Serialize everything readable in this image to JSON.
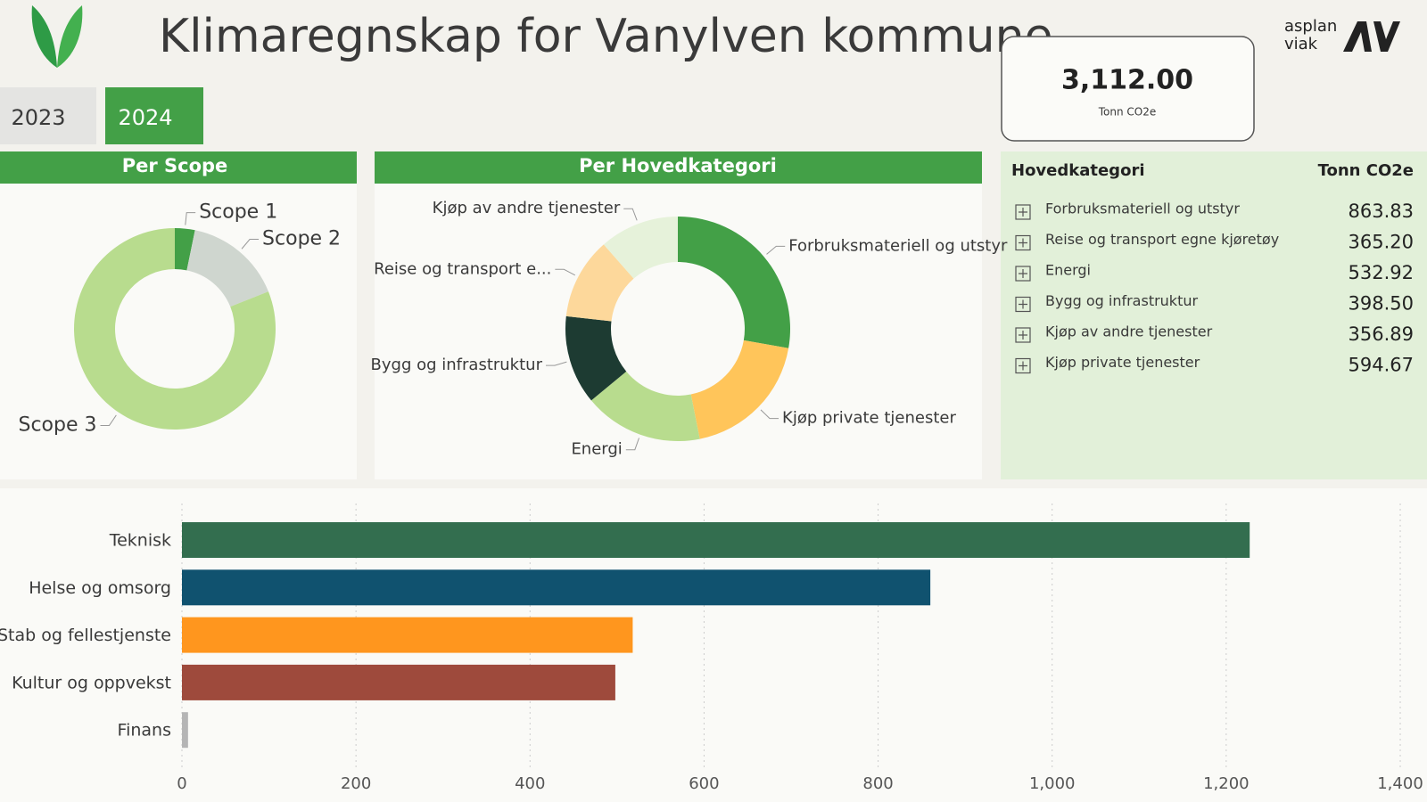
{
  "header": {
    "title": "Klimaregnskap for Vanylven kommune",
    "logo_text": [
      "asplan",
      "viak"
    ]
  },
  "year_buttons": {
    "items": [
      "2023",
      "2024"
    ],
    "selected": 1
  },
  "kpi_card": {
    "value": "3,112.00",
    "unit": "Tonn CO2e"
  },
  "table": {
    "columns": [
      "Hovedkategori",
      "Tonn CO2e"
    ],
    "rows": [
      [
        "Forbruksmateriell og utstyr",
        "863.83"
      ],
      [
        "Reise og transport egne kjøretøy",
        "365.20"
      ],
      [
        "Energi",
        "532.92"
      ],
      [
        "Bygg og infrastruktur",
        "398.50"
      ],
      [
        "Kjøp av andre tjenester",
        "356.89"
      ],
      [
        "Kjøp private tjenester",
        "594.67"
      ]
    ]
  },
  "chart_data": [
    {
      "type": "donut",
      "title": "Per Scope",
      "categories": [
        "Scope 1",
        "Scope 2",
        "Scope 3"
      ],
      "values": [
        100,
        490,
        2522
      ],
      "colors": [
        "#43a047",
        "#cfd6cf",
        "#b8dc8e"
      ]
    },
    {
      "type": "donut",
      "title": "Per Hovedkategori",
      "categories": [
        "Forbruksmateriell og utstyr",
        "Kjøp private tjenester",
        "Energi",
        "Bygg og infrastruktur",
        "Reise og transport e...",
        "Kjøp av andre tjenester"
      ],
      "values": [
        863.83,
        594.67,
        532.92,
        398.5,
        365.2,
        356.89
      ],
      "colors": [
        "#43a047",
        "#ffc55a",
        "#b8dc8e",
        "#1d3b32",
        "#fdd89b",
        "#e6f2da"
      ]
    },
    {
      "type": "hbar",
      "categories": [
        "Teknisk",
        "Helse og omsorg",
        "Stab og fellestjenste",
        "Kultur og oppvekst",
        "Finans"
      ],
      "values": [
        1227,
        860,
        518,
        498,
        7
      ],
      "colors": [
        "#336e4f",
        "#10526f",
        "#ff961e",
        "#9e4a3c",
        "#b5b5b5"
      ],
      "xlim": [
        0,
        1400
      ],
      "xticks": [
        0,
        200,
        400,
        600,
        800,
        {
          "value": 1000,
          "label": "1,000"
        },
        {
          "value": 1200,
          "label": "1,200"
        },
        {
          "value": 1400,
          "label": "1,400"
        }
      ],
      "grid": true
    }
  ]
}
